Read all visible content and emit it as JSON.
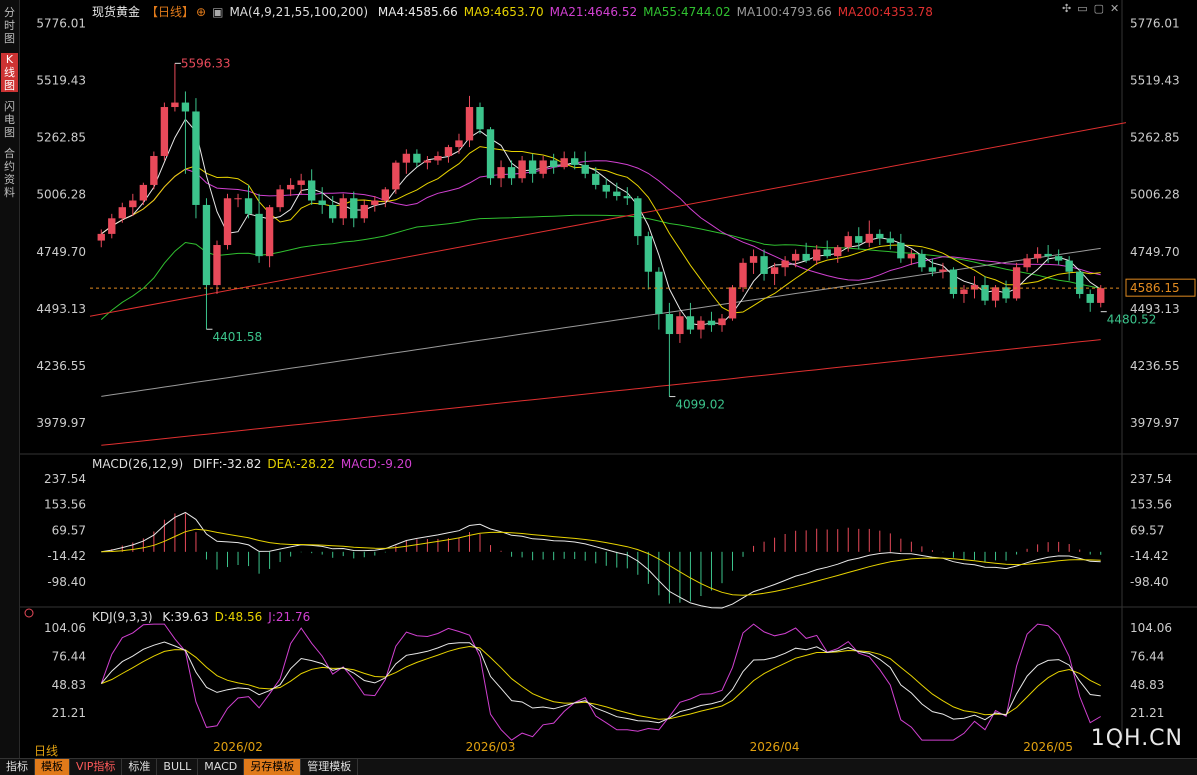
{
  "window": {
    "instrument": "现货黄金",
    "period_tag": "【日线】",
    "watermark": "1QH.CN",
    "daily_label": "日线"
  },
  "sidebar": {
    "tabs": [
      {
        "label": "分时图",
        "active": false
      },
      {
        "label": "K线图",
        "active": true
      },
      {
        "label": "闪电图",
        "active": false
      },
      {
        "label": "合约资料",
        "active": false
      }
    ]
  },
  "bottom_tabs": [
    {
      "label": "指标",
      "style": "normal"
    },
    {
      "label": "模板",
      "style": "orange"
    },
    {
      "label": "VIP指标",
      "style": "red"
    },
    {
      "label": "标准",
      "style": "normal"
    },
    {
      "label": "BULL",
      "style": "normal"
    },
    {
      "label": "MACD",
      "style": "normal"
    },
    {
      "label": "另存模板",
      "style": "orange"
    },
    {
      "label": "管理模板",
      "style": "normal"
    }
  ],
  "main_legend": {
    "ma_params": "MA(4,9,21,55,100,200)",
    "items": [
      {
        "text": "MA4:4585.66",
        "color": "#e8e8e8"
      },
      {
        "text": "MA9:4653.70",
        "color": "#e6d200"
      },
      {
        "text": "MA21:4646.52",
        "color": "#d040d0"
      },
      {
        "text": "MA55:4744.02",
        "color": "#30c030"
      },
      {
        "text": "MA100:4793.66",
        "color": "#9a9a9a"
      },
      {
        "text": "MA200:4353.78",
        "color": "#e03030"
      }
    ]
  },
  "macd_legend": {
    "title": "MACD(26,12,9)",
    "items": [
      {
        "text": "DIFF:-32.82",
        "color": "#e8e8e8"
      },
      {
        "text": "DEA:-28.22",
        "color": "#e6d200"
      },
      {
        "text": "MACD:-9.20",
        "color": "#d040d0"
      }
    ]
  },
  "kdj_legend": {
    "title": "KDJ(9,3,3)",
    "items": [
      {
        "text": "K:39.63",
        "color": "#e8e8e8"
      },
      {
        "text": "D:48.56",
        "color": "#e6d200"
      },
      {
        "text": "J:21.76",
        "color": "#d040d0"
      }
    ]
  },
  "chart_data": {
    "type": "candlestick",
    "x_labels": [
      "2026/02",
      "2026/03",
      "2026/04",
      "2026/05"
    ],
    "price_axis": {
      "ticks": [
        "5776.01",
        "5519.43",
        "5262.85",
        "5006.28",
        "4749.70",
        "4493.13",
        "4236.55",
        "3979.97"
      ],
      "min": 3850,
      "max": 5800
    },
    "last_price": "4586.15",
    "annotations": [
      {
        "text": "5596.33",
        "value": 5596.33,
        "kind": "high"
      },
      {
        "text": "4401.58",
        "value": 4401.58,
        "kind": "low"
      },
      {
        "text": "4099.02",
        "value": 4099.02,
        "kind": "low"
      },
      {
        "text": "4480.52",
        "value": 4480.52,
        "kind": "low"
      }
    ],
    "candles": [
      [
        4800,
        4850,
        4770,
        4830
      ],
      [
        4830,
        4920,
        4810,
        4900
      ],
      [
        4900,
        4970,
        4880,
        4950
      ],
      [
        4950,
        5010,
        4910,
        4980
      ],
      [
        4980,
        5060,
        4960,
        5050
      ],
      [
        5050,
        5200,
        5030,
        5180
      ],
      [
        5180,
        5420,
        5160,
        5400
      ],
      [
        5400,
        5596,
        5380,
        5420
      ],
      [
        5420,
        5470,
        5100,
        5380
      ],
      [
        5380,
        5440,
        4900,
        4960
      ],
      [
        4960,
        4990,
        4401,
        4600
      ],
      [
        4600,
        4800,
        4560,
        4780
      ],
      [
        4780,
        5010,
        4760,
        4990
      ],
      [
        4990,
        5010,
        4950,
        4990
      ],
      [
        4990,
        5050,
        4900,
        4920
      ],
      [
        4920,
        5010,
        4700,
        4730
      ],
      [
        4730,
        4960,
        4680,
        4950
      ],
      [
        4950,
        5050,
        4930,
        5030
      ],
      [
        5030,
        5080,
        5000,
        5050
      ],
      [
        5050,
        5100,
        5010,
        5070
      ],
      [
        5070,
        5120,
        4960,
        4980
      ],
      [
        4980,
        5040,
        4920,
        4960
      ],
      [
        4960,
        5000,
        4880,
        4900
      ],
      [
        4900,
        5010,
        4870,
        4990
      ],
      [
        4990,
        5020,
        4860,
        4900
      ],
      [
        4900,
        4980,
        4880,
        4960
      ],
      [
        4960,
        5000,
        4930,
        4980
      ],
      [
        4980,
        5040,
        4950,
        5030
      ],
      [
        5030,
        5160,
        5010,
        5150
      ],
      [
        5150,
        5210,
        5100,
        5190
      ],
      [
        5190,
        5210,
        5130,
        5150
      ],
      [
        5150,
        5180,
        5120,
        5160
      ],
      [
        5160,
        5200,
        5140,
        5180
      ],
      [
        5180,
        5230,
        5150,
        5220
      ],
      [
        5220,
        5280,
        5190,
        5250
      ],
      [
        5250,
        5450,
        5220,
        5400
      ],
      [
        5400,
        5420,
        5280,
        5300
      ],
      [
        5300,
        5310,
        5050,
        5080
      ],
      [
        5080,
        5160,
        5040,
        5130
      ],
      [
        5130,
        5160,
        5050,
        5080
      ],
      [
        5080,
        5180,
        5060,
        5160
      ],
      [
        5160,
        5190,
        5060,
        5100
      ],
      [
        5100,
        5180,
        5080,
        5160
      ],
      [
        5160,
        5190,
        5100,
        5130
      ],
      [
        5130,
        5200,
        5120,
        5170
      ],
      [
        5170,
        5200,
        5120,
        5140
      ],
      [
        5140,
        5200,
        5080,
        5100
      ],
      [
        5100,
        5130,
        5030,
        5050
      ],
      [
        5050,
        5080,
        4990,
        5020
      ],
      [
        5020,
        5060,
        4980,
        5000
      ],
      [
        5000,
        5040,
        4960,
        4990
      ],
      [
        4990,
        5000,
        4780,
        4820
      ],
      [
        4820,
        4840,
        4580,
        4660
      ],
      [
        4660,
        4680,
        4400,
        4470
      ],
      [
        4470,
        4520,
        4099,
        4380
      ],
      [
        4380,
        4480,
        4340,
        4460
      ],
      [
        4460,
        4520,
        4380,
        4400
      ],
      [
        4400,
        4460,
        4360,
        4440
      ],
      [
        4440,
        4480,
        4390,
        4420
      ],
      [
        4420,
        4470,
        4390,
        4450
      ],
      [
        4450,
        4600,
        4440,
        4590
      ],
      [
        4590,
        4720,
        4570,
        4700
      ],
      [
        4700,
        4760,
        4650,
        4730
      ],
      [
        4730,
        4760,
        4620,
        4650
      ],
      [
        4650,
        4700,
        4600,
        4680
      ],
      [
        4680,
        4730,
        4640,
        4710
      ],
      [
        4710,
        4760,
        4680,
        4740
      ],
      [
        4740,
        4790,
        4700,
        4710
      ],
      [
        4710,
        4780,
        4690,
        4760
      ],
      [
        4760,
        4800,
        4720,
        4730
      ],
      [
        4730,
        4780,
        4700,
        4770
      ],
      [
        4770,
        4840,
        4750,
        4820
      ],
      [
        4820,
        4860,
        4760,
        4790
      ],
      [
        4790,
        4890,
        4770,
        4830
      ],
      [
        4830,
        4850,
        4780,
        4810
      ],
      [
        4810,
        4840,
        4760,
        4790
      ],
      [
        4790,
        4830,
        4700,
        4720
      ],
      [
        4720,
        4760,
        4690,
        4740
      ],
      [
        4740,
        4760,
        4660,
        4680
      ],
      [
        4680,
        4720,
        4640,
        4660
      ],
      [
        4660,
        4700,
        4630,
        4670
      ],
      [
        4670,
        4680,
        4540,
        4560
      ],
      [
        4560,
        4600,
        4520,
        4580
      ],
      [
        4580,
        4640,
        4540,
        4600
      ],
      [
        4600,
        4640,
        4510,
        4530
      ],
      [
        4530,
        4600,
        4500,
        4590
      ],
      [
        4590,
        4620,
        4520,
        4540
      ],
      [
        4540,
        4700,
        4530,
        4680
      ],
      [
        4680,
        4740,
        4660,
        4720
      ],
      [
        4720,
        4770,
        4700,
        4740
      ],
      [
        4740,
        4780,
        4700,
        4730
      ],
      [
        4730,
        4760,
        4690,
        4710
      ],
      [
        4710,
        4730,
        4620,
        4660
      ],
      [
        4660,
        4670,
        4540,
        4560
      ],
      [
        4560,
        4580,
        4480,
        4520
      ],
      [
        4520,
        4600,
        4500,
        4586
      ]
    ],
    "macd_axis": {
      "ticks": [
        "237.54",
        "153.56",
        "69.57",
        "-14.42",
        "-98.40"
      ],
      "min": -170,
      "max": 260
    },
    "kdj_axis": {
      "ticks": [
        "104.06",
        "76.44",
        "48.83",
        "21.21"
      ],
      "min": 0,
      "max": 110
    }
  }
}
